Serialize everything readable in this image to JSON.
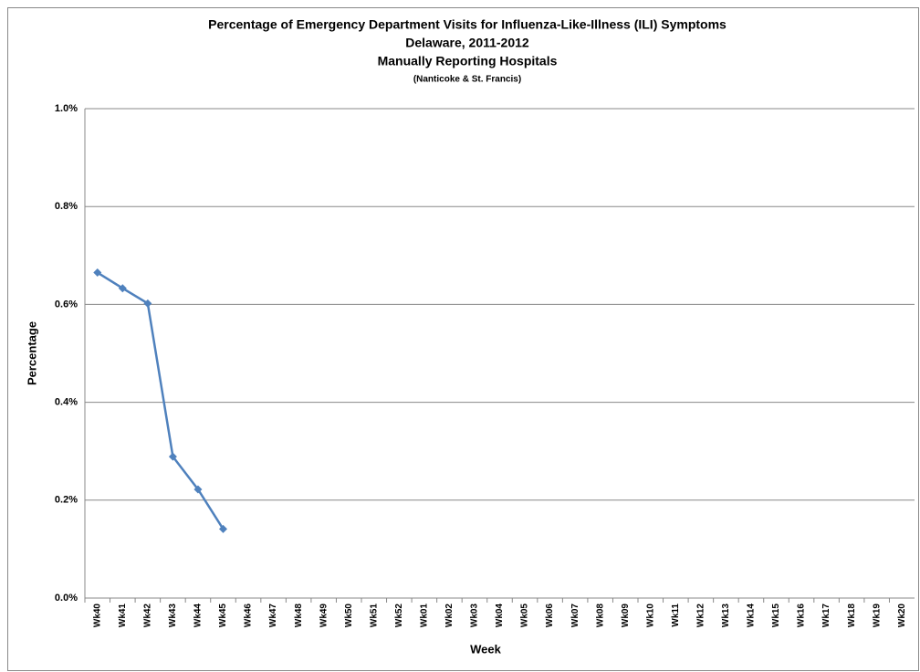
{
  "chart_data": {
    "type": "line",
    "title": "Percentage of Emergency Department Visits for Influenza-Like-Illness (ILI) Symptoms",
    "subtitle": [
      "Delaware, 2011-2012",
      "Manually Reporting  Hospitals",
      "(Nanticoke & St. Francis)"
    ],
    "x_label": "Week",
    "y_label": "Percentage",
    "categories": [
      "Wk40",
      "Wk41",
      "Wk42",
      "Wk43",
      "Wk44",
      "Wk45",
      "Wk46",
      "Wk47",
      "Wk48",
      "Wk49",
      "Wk50",
      "Wk51",
      "Wk52",
      "Wk01",
      "Wk02",
      "Wk03",
      "Wk04",
      "Wk05",
      "Wk06",
      "Wk07",
      "Wk08",
      "Wk09",
      "Wk10",
      "Wk11",
      "Wk12",
      "Wk13",
      "Wk14",
      "Wk15",
      "Wk16",
      "Wk17",
      "Wk18",
      "Wk19",
      "Wk20"
    ],
    "series": [
      {
        "name": "Percentage",
        "color": "#4f81bd",
        "values": [
          0.665,
          0.633,
          0.602,
          0.289,
          0.222,
          0.141,
          null,
          null,
          null,
          null,
          null,
          null,
          null,
          null,
          null,
          null,
          null,
          null,
          null,
          null,
          null,
          null,
          null,
          null,
          null,
          null,
          null,
          null,
          null,
          null,
          null,
          null,
          null
        ]
      }
    ],
    "ylim": [
      0,
      1.0
    ],
    "yticks": [
      {
        "value": 0,
        "label": "0.0%"
      },
      {
        "value": 0.2,
        "label": "0.2%"
      },
      {
        "value": 0.4,
        "label": "0.4%"
      },
      {
        "value": 0.6,
        "label": "0.6%"
      },
      {
        "value": 0.8,
        "label": "0.8%"
      },
      {
        "value": 1.0,
        "label": "1.0%"
      }
    ],
    "grid": true,
    "legend": false
  }
}
